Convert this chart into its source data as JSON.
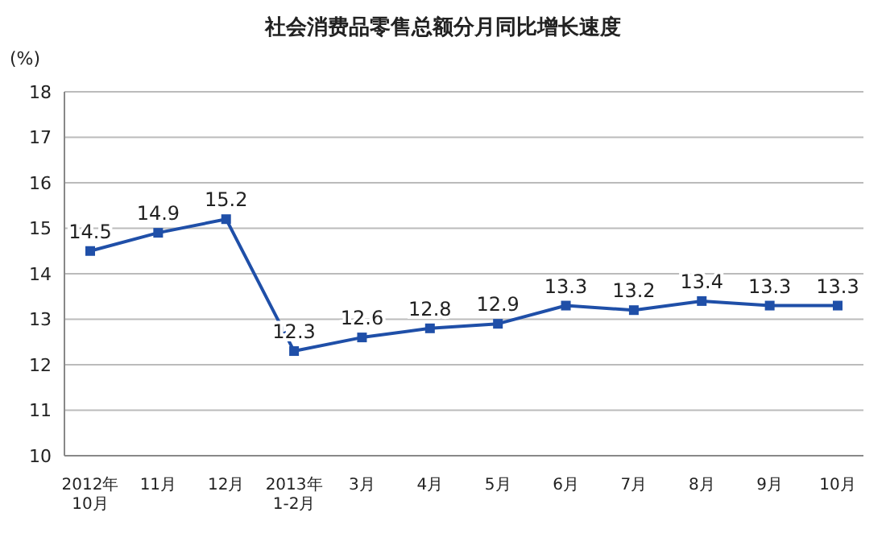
{
  "chart_data": {
    "type": "line",
    "title": "社会消费品零售总额分月同比增长速度",
    "ylabel": "(%)",
    "categories": [
      "2012年\n10月",
      "11月",
      "12月",
      "2013年\n1-2月",
      "3月",
      "4月",
      "5月",
      "6月",
      "7月",
      "8月",
      "9月",
      "10月"
    ],
    "series": [
      {
        "color": "#1f4fa8",
        "values": [
          14.5,
          14.9,
          15.2,
          12.3,
          12.6,
          12.8,
          12.9,
          13.3,
          13.2,
          13.4,
          13.3,
          13.3
        ]
      }
    ],
    "ylim": [
      10,
      18
    ],
    "yticks": [
      10,
      11,
      12,
      13,
      14,
      15,
      16,
      17,
      18
    ],
    "grid": "y",
    "marker": "square",
    "line_style": "solid",
    "data_labels": true
  }
}
